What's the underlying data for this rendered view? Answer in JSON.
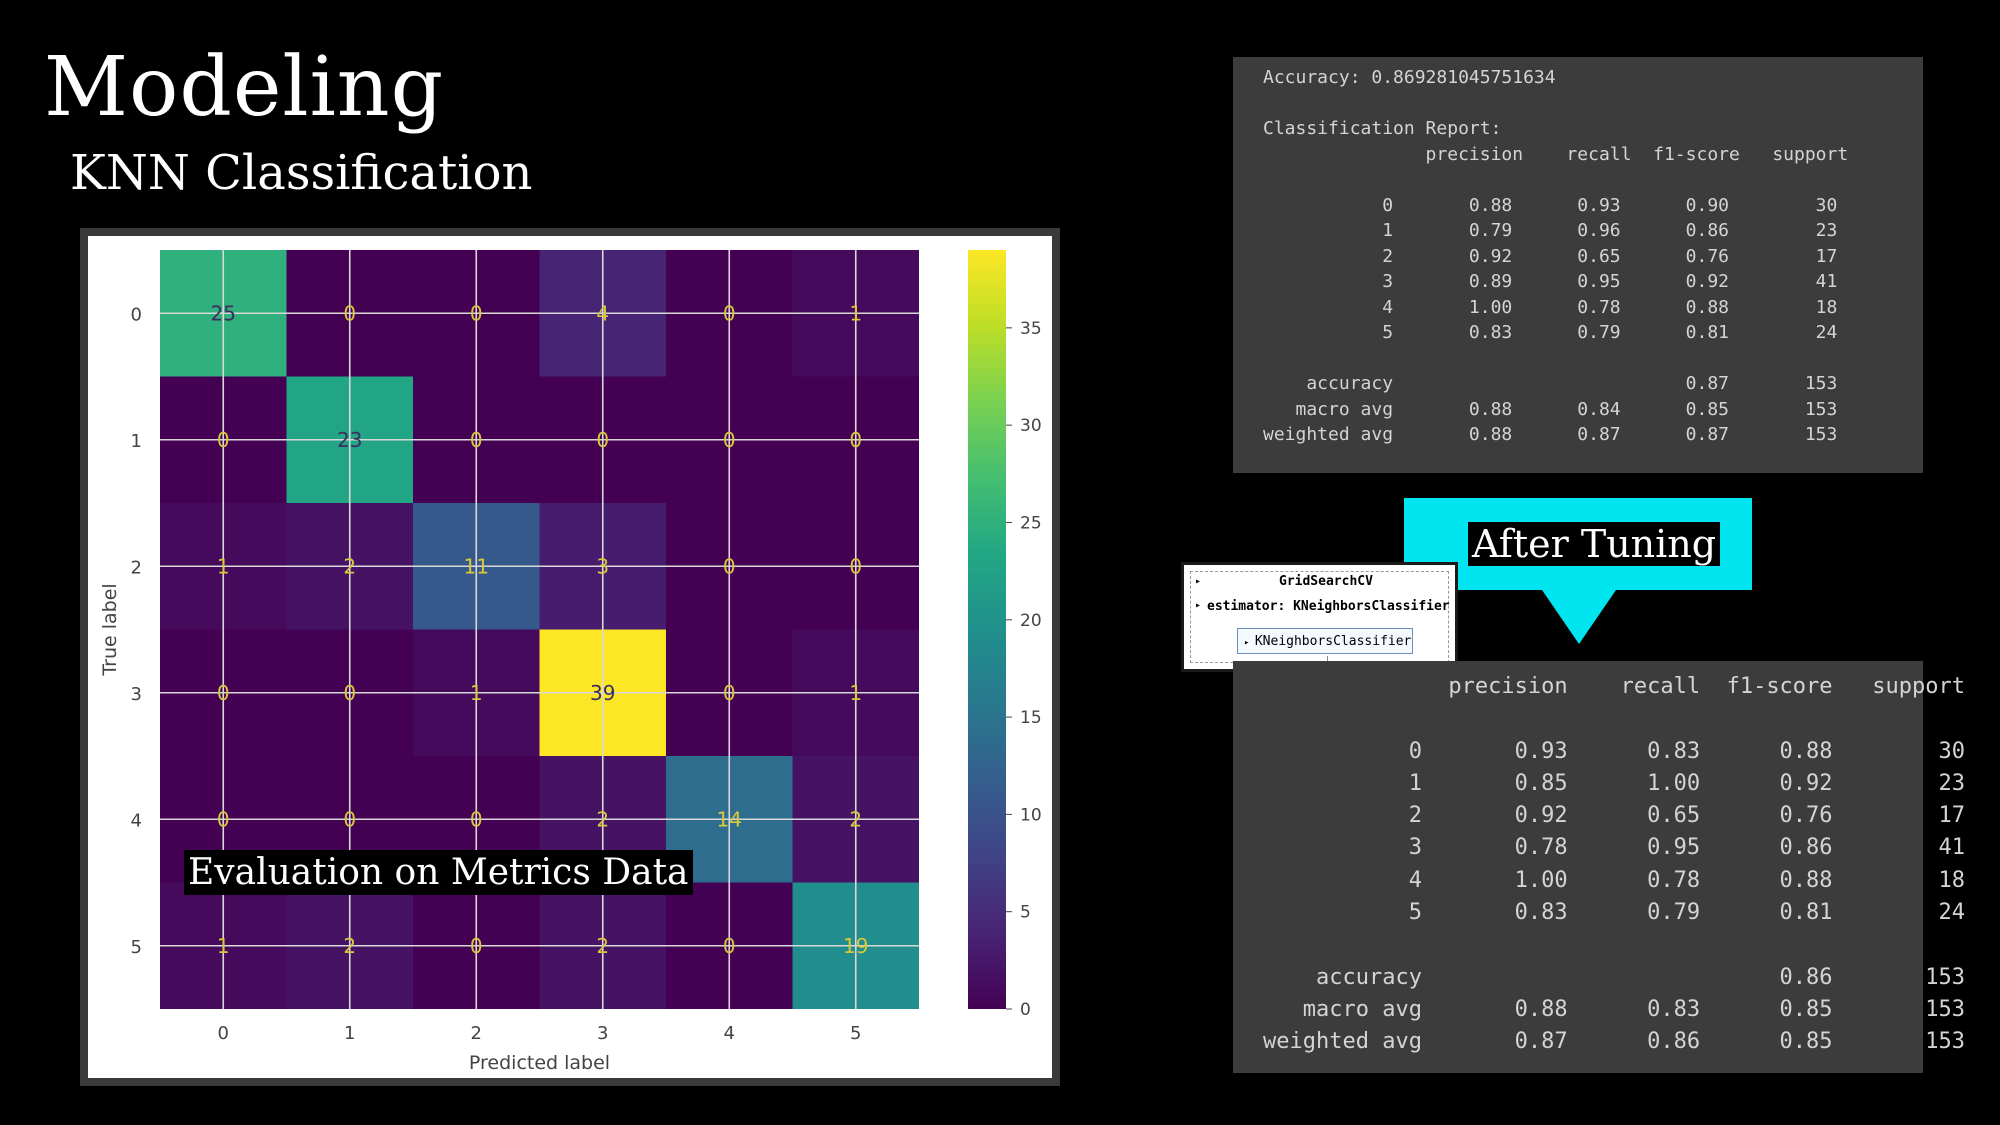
{
  "title": "Modeling",
  "subtitle": "KNN Classification",
  "eval_label": "Evaluation on Metrics Data",
  "tuning_label": "After Tuning",
  "grid_widget": {
    "title": "GridSearchCV",
    "estimator_row": "estimator: KNeighborsClassifier",
    "estimator_box": "KNeighborsClassifier"
  },
  "report_before": {
    "text": "Accuracy: 0.869281045751634\n\nClassification Report:\n               precision    recall  f1-score   support\n\n           0       0.88      0.93      0.90        30\n           1       0.79      0.96      0.86        23\n           2       0.92      0.65      0.76        17\n           3       0.89      0.95      0.92        41\n           4       1.00      0.78      0.88        18\n           5       0.83      0.79      0.81        24\n\n    accuracy                           0.87       153\n   macro avg       0.88      0.84      0.85       153\nweighted avg       0.88      0.87      0.87       153"
  },
  "report_after": {
    "text": "              precision    recall  f1-score   support\n\n           0       0.93      0.83      0.88        30\n           1       0.85      1.00      0.92        23\n           2       0.92      0.65      0.76        17\n           3       0.78      0.95      0.86        41\n           4       1.00      0.78      0.88        18\n           5       0.83      0.79      0.81        24\n\n    accuracy                           0.86       153\n   macro avg       0.88      0.83      0.85       153\nweighted avg       0.87      0.86      0.85       153"
  },
  "chart_data": {
    "type": "heatmap",
    "title": "",
    "xlabel": "Predicted label",
    "ylabel": "True label",
    "x_categories": [
      "0",
      "1",
      "2",
      "3",
      "4",
      "5"
    ],
    "y_categories": [
      "0",
      "1",
      "2",
      "3",
      "4",
      "5"
    ],
    "matrix": [
      [
        25,
        0,
        0,
        4,
        0,
        1
      ],
      [
        0,
        23,
        0,
        0,
        0,
        0
      ],
      [
        1,
        2,
        11,
        3,
        0,
        0
      ],
      [
        0,
        0,
        1,
        39,
        0,
        1
      ],
      [
        0,
        0,
        0,
        2,
        14,
        2
      ],
      [
        1,
        2,
        0,
        2,
        0,
        19
      ]
    ],
    "colormap": "viridis",
    "colorbar_range": [
      0,
      39
    ],
    "colorbar_ticks": [
      0,
      5,
      10,
      15,
      20,
      25,
      30,
      35
    ],
    "grid": true
  }
}
